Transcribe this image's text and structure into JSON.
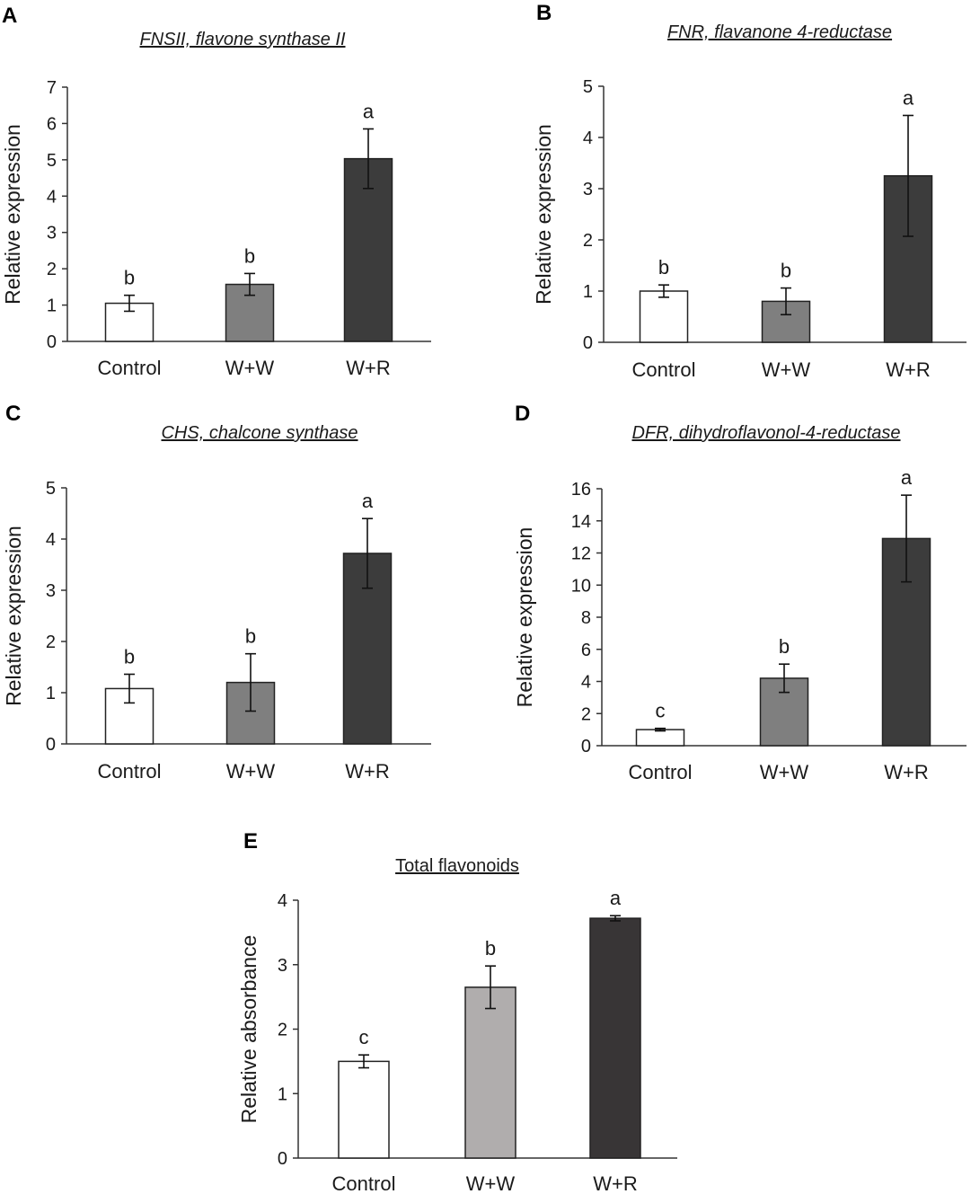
{
  "chart_data": [
    {
      "panel": "A",
      "type": "bar",
      "title": "FNSII, flavone synthase II",
      "title_italic": true,
      "ylabel": "Relative expression",
      "xlabel": "",
      "categories": [
        "Control",
        "W+W",
        "W+R"
      ],
      "values": [
        1.05,
        1.57,
        5.03
      ],
      "errors": [
        0.22,
        0.3,
        0.82
      ],
      "significance": [
        "b",
        "b",
        "a"
      ],
      "bar_colors": [
        "#ffffff",
        "#7f7f7f",
        "#3c3c3c"
      ],
      "ylim": [
        0,
        7
      ],
      "yticks": [
        0,
        1,
        2,
        3,
        4,
        5,
        6,
        7
      ]
    },
    {
      "panel": "B",
      "type": "bar",
      "title": "FNR, flavanone 4-reductase",
      "title_italic": true,
      "ylabel": "Relative expression",
      "xlabel": "",
      "categories": [
        "Control",
        "W+W",
        "W+R"
      ],
      "values": [
        1.0,
        0.8,
        3.25
      ],
      "errors": [
        0.12,
        0.26,
        1.18
      ],
      "significance": [
        "b",
        "b",
        "a"
      ],
      "bar_colors": [
        "#ffffff",
        "#7f7f7f",
        "#3c3c3c"
      ],
      "ylim": [
        0,
        5
      ],
      "yticks": [
        0,
        1,
        2,
        3,
        4,
        5
      ]
    },
    {
      "panel": "C",
      "type": "bar",
      "title": "CHS, chalcone synthase",
      "title_italic": true,
      "ylabel": "Relative expression",
      "xlabel": "",
      "categories": [
        "Control",
        "W+W",
        "W+R"
      ],
      "values": [
        1.08,
        1.2,
        3.72
      ],
      "errors": [
        0.28,
        0.56,
        0.68
      ],
      "significance": [
        "b",
        "b",
        "a"
      ],
      "bar_colors": [
        "#ffffff",
        "#7f7f7f",
        "#3c3c3c"
      ],
      "ylim": [
        0,
        5
      ],
      "yticks": [
        0,
        1,
        2,
        3,
        4,
        5
      ]
    },
    {
      "panel": "D",
      "type": "bar",
      "title": "DFR, dihydroflavonol-4-reductase",
      "title_italic": true,
      "ylabel": "Relative expression",
      "xlabel": "",
      "categories": [
        "Control",
        "W+W",
        "W+R"
      ],
      "values": [
        1.0,
        4.2,
        12.9
      ],
      "errors": [
        0.08,
        0.88,
        2.7
      ],
      "significance": [
        "c",
        "b",
        "a"
      ],
      "bar_colors": [
        "#ffffff",
        "#7f7f7f",
        "#3c3c3c"
      ],
      "ylim": [
        0,
        16
      ],
      "yticks": [
        0,
        2,
        4,
        6,
        8,
        10,
        12,
        14,
        16
      ]
    },
    {
      "panel": "E",
      "type": "bar",
      "title": "Total flavonoids",
      "title_italic": false,
      "ylabel": "Relative absorbance",
      "xlabel": "",
      "categories": [
        "Control",
        "W+W",
        "W+R"
      ],
      "values": [
        1.5,
        2.65,
        3.72
      ],
      "errors": [
        0.1,
        0.33,
        0.04
      ],
      "significance": [
        "c",
        "b",
        "a"
      ],
      "bar_colors": [
        "#ffffff",
        "#b0adad",
        "#383536"
      ],
      "ylim": [
        0,
        4
      ],
      "yticks": [
        0,
        1,
        2,
        3,
        4
      ]
    }
  ]
}
